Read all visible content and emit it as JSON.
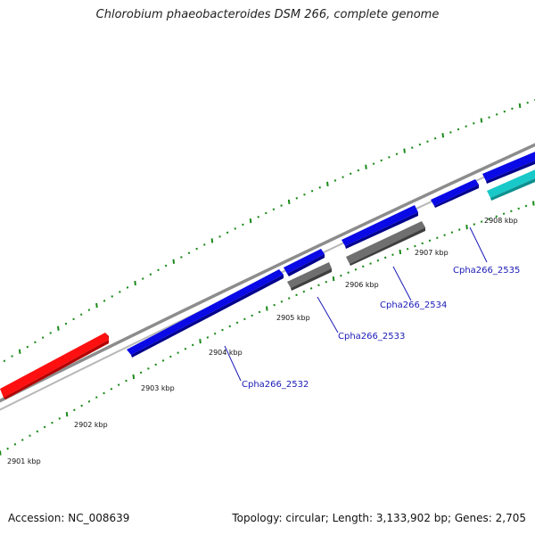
{
  "title": "Chlorobium phaeobacteroides DSM 266, complete genome",
  "footer": {
    "accession": "Accession: NC_008639",
    "stats": "Topology: circular; Length: 3,133,902 bp; Genes: 2,705"
  },
  "tick_labels": [
    "2901 kbp",
    "2902 kbp",
    "2903 kbp",
    "2904 kbp",
    "2905 kbp",
    "2906 kbp",
    "2907 kbp",
    "2908 kbp"
  ],
  "gene_labels": [
    "Cpha266_2532",
    "Cpha266_2533",
    "Cpha266_2534",
    "Cpha266_2535"
  ],
  "colors": {
    "backbone": "#8c8c8c",
    "ticks": "#1a8a1a",
    "gene_forward": "#0a0ae6",
    "gene_reverse_blue": "#0a0ae6",
    "gene_red": "#ff1010",
    "gene_gray": "#6f6f6f",
    "gene_cyan": "#19c8c8",
    "label_text": "#1a1ab8"
  }
}
